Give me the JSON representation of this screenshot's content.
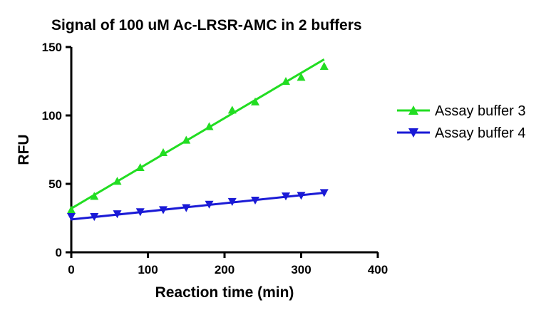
{
  "chart_data": {
    "type": "scatter",
    "title": "Signal of 100 uM Ac-LRSR-AMC in 2 buffers",
    "xlabel": "Reaction time (min)",
    "ylabel": "RFU",
    "xlim": [
      0,
      400
    ],
    "ylim": [
      0,
      150
    ],
    "xticks": [
      "0",
      "100",
      "200",
      "300",
      "400"
    ],
    "yticks": [
      "0",
      "50",
      "100",
      "150"
    ],
    "grid": false,
    "legend_position": "right",
    "series": [
      {
        "name": "Assay buffer 3",
        "color": "#22dd22",
        "marker": "triangle-up",
        "x": [
          0,
          30,
          60,
          90,
          120,
          150,
          180,
          210,
          240,
          280,
          300,
          330
        ],
        "y": [
          31,
          41,
          52,
          62,
          73,
          82,
          92,
          104,
          110,
          125,
          128,
          136
        ],
        "fit_line": {
          "x": [
            0,
            330
          ],
          "y": [
            32,
            141
          ]
        }
      },
      {
        "name": "Assay buffer 4",
        "color": "#1a1ad6",
        "marker": "triangle-down",
        "x": [
          0,
          30,
          60,
          90,
          120,
          150,
          180,
          210,
          240,
          280,
          300,
          330
        ],
        "y": [
          26,
          26,
          28,
          29.5,
          31,
          32.5,
          35,
          37,
          38,
          41,
          41.5,
          43.5
        ],
        "fit_line": {
          "x": [
            0,
            330
          ],
          "y": [
            24,
            43.5
          ]
        }
      }
    ]
  }
}
